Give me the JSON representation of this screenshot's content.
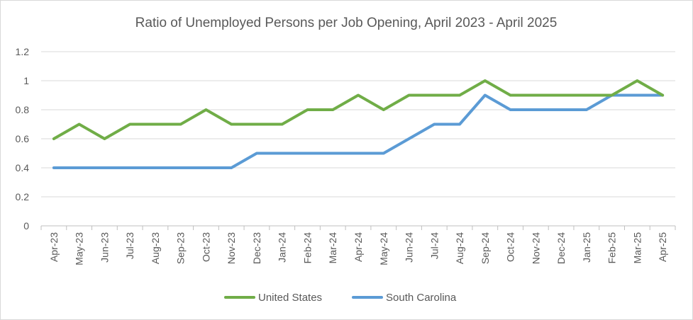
{
  "chart_data": {
    "type": "line",
    "title": "Ratio of Unemployed Persons per Job Opening, April 2023 - April 2025",
    "xlabel": "",
    "ylabel": "",
    "ylim": [
      0,
      1.2
    ],
    "yticks": [
      "0",
      "0.2",
      "0.4",
      "0.6",
      "0.8",
      "1",
      "1.2"
    ],
    "grid": true,
    "legend_position": "bottom",
    "categories": [
      "Apr-23",
      "May-23",
      "Jun-23",
      "Jul-23",
      "Aug-23",
      "Sep-23",
      "Oct-23",
      "Nov-23",
      "Dec-23",
      "Jan-24",
      "Feb-24",
      "Mar-24",
      "Apr-24",
      "May-24",
      "Jun-24",
      "Jul-24",
      "Aug-24",
      "Sep-24",
      "Oct-24",
      "Nov-24",
      "Dec-24",
      "Jan-25",
      "Feb-25",
      "Mar-25",
      "Apr-25"
    ],
    "series": [
      {
        "name": "United States",
        "color": "#70ad47",
        "values": [
          0.6,
          0.7,
          0.6,
          0.7,
          0.7,
          0.7,
          0.8,
          0.7,
          0.7,
          0.7,
          0.8,
          0.8,
          0.9,
          0.8,
          0.9,
          0.9,
          0.9,
          1.0,
          0.9,
          0.9,
          0.9,
          0.9,
          0.9,
          1.0,
          0.9
        ]
      },
      {
        "name": "South Carolina",
        "color": "#5b9bd5",
        "values": [
          0.4,
          0.4,
          0.4,
          0.4,
          0.4,
          0.4,
          0.4,
          0.4,
          0.5,
          0.5,
          0.5,
          0.5,
          0.5,
          0.5,
          0.6,
          0.7,
          0.7,
          0.9,
          0.8,
          0.8,
          0.8,
          0.8,
          0.9,
          0.9,
          0.9
        ]
      }
    ]
  }
}
